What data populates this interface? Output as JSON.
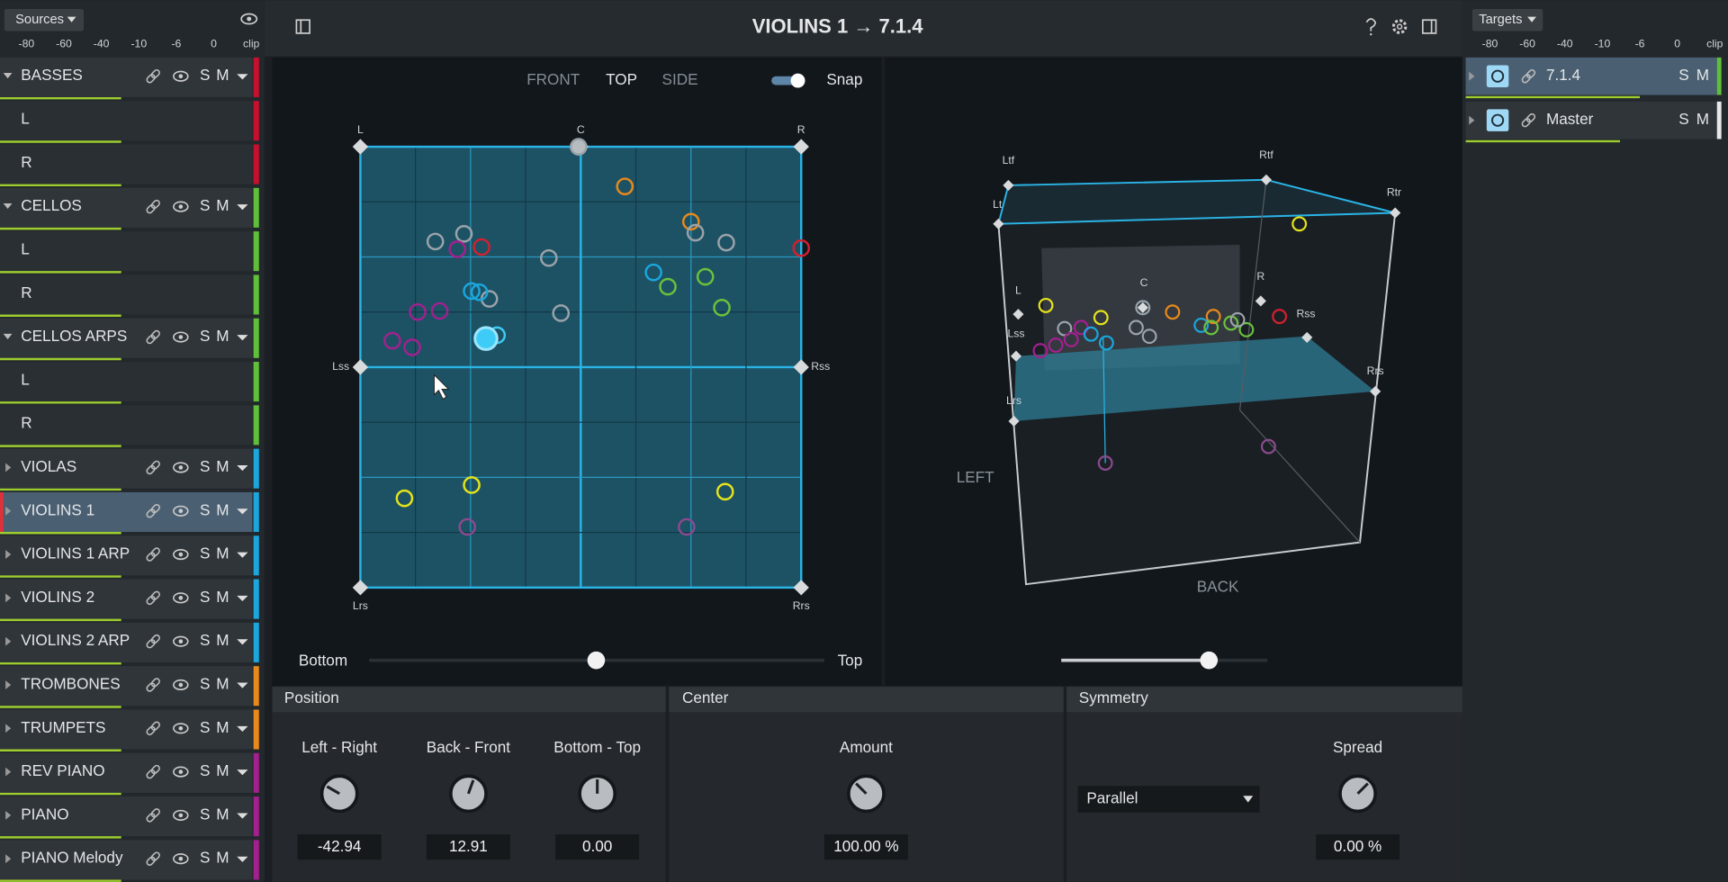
{
  "sources": {
    "title": "Sources",
    "meter_labels": [
      "-80",
      "-60",
      "-40",
      "-10",
      "-6",
      "0",
      "clip"
    ],
    "buttons": [
      "S",
      "M"
    ],
    "tracks": [
      {
        "name": "BASSES",
        "color": "#c8102e",
        "channels": [
          "L",
          "R"
        ]
      },
      {
        "name": "CELLOS",
        "color": "#5fbf3a",
        "channels": [
          "L",
          "R"
        ]
      },
      {
        "name": "CELLOS ARPS",
        "color": "#5fbf3a",
        "channels": [
          "L",
          "R"
        ]
      },
      {
        "name": "VIOLAS",
        "color": "#1ba6dc"
      },
      {
        "name": "VIOLINS 1",
        "color": "#1ba6dc",
        "selected": true
      },
      {
        "name": "VIOLINS 1 ARP",
        "color": "#1ba6dc"
      },
      {
        "name": "VIOLINS 2",
        "color": "#1ba6dc"
      },
      {
        "name": "VIOLINS 2 ARP",
        "color": "#1ba6dc"
      },
      {
        "name": "TROMBONES",
        "color": "#e8891c"
      },
      {
        "name": "TRUMPETS",
        "color": "#e8891c"
      },
      {
        "name": "REV PIANO",
        "color": "#a3208f"
      },
      {
        "name": "PIANO",
        "color": "#a3208f"
      },
      {
        "name": "PIANO Melody",
        "color": "#a3208f"
      }
    ]
  },
  "toolbar": {
    "title": "VIOLINS 1 → 7.1.4"
  },
  "top_view": {
    "tabs": [
      "FRONT",
      "TOP",
      "SIDE"
    ],
    "snap": "Snap",
    "speakers": [
      "L",
      "C",
      "R",
      "Lss",
      "Rss",
      "Lrs",
      "Rrs"
    ],
    "slider": [
      "Bottom",
      "Top"
    ]
  },
  "view_3d": {
    "speakers": [
      "Ltf",
      "Rtf",
      "Lt",
      "Rtr",
      "L",
      "C",
      "R",
      "Lss",
      "Rss",
      "Lrs",
      "Rrs"
    ],
    "labels": [
      "LEFT",
      "BACK"
    ]
  },
  "position": {
    "title": "Position",
    "knobs": [
      {
        "label": "Left - Right",
        "value": "-42.94"
      },
      {
        "label": "Back - Front",
        "value": "12.91"
      },
      {
        "label": "Bottom - Top",
        "value": "0.00"
      }
    ]
  },
  "center": {
    "title": "Center",
    "knobs": [
      {
        "label": "Amount",
        "value": "100.00 %"
      }
    ]
  },
  "symmetry": {
    "title": "Symmetry",
    "mode": "Parallel",
    "knobs": [
      {
        "label": "Spread",
        "value": "0.00 %"
      }
    ]
  },
  "targets": {
    "title": "Targets",
    "meter_labels": [
      "-80",
      "-60",
      "-40",
      "-10",
      "-6",
      "0",
      "clip"
    ],
    "buttons": [
      "S",
      "M"
    ],
    "items": [
      "7.1.4",
      "Master"
    ]
  }
}
